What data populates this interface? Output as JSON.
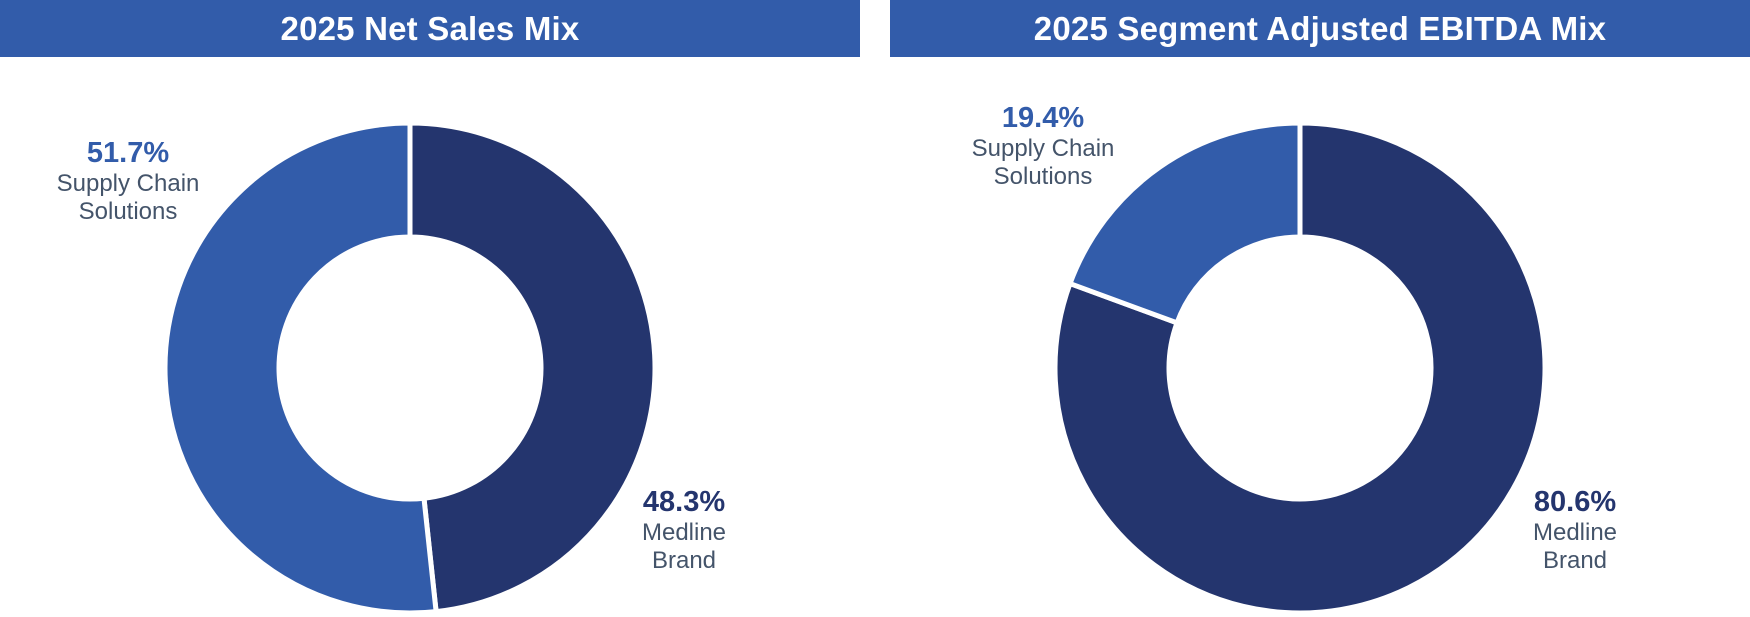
{
  "colors": {
    "header": "#325caa",
    "medline_brand": "#24356e",
    "supply_chain": "#325caa",
    "label_text": "#44546a"
  },
  "chart_data": [
    {
      "type": "pie",
      "donut": true,
      "title": "2025 Net Sales Mix",
      "slices": [
        {
          "name": "Medline\nBrand",
          "value": 48.3,
          "label": "48.3%",
          "color": "#24356e"
        },
        {
          "name": "Supply Chain\nSolutions",
          "value": 51.7,
          "label": "51.7%",
          "color": "#325caa"
        }
      ]
    },
    {
      "type": "pie",
      "donut": true,
      "title": "2025 Segment Adjusted EBITDA Mix",
      "slices": [
        {
          "name": "Medline\nBrand",
          "value": 80.6,
          "label": "80.6%",
          "color": "#24356e"
        },
        {
          "name": "Supply Chain\nSolutions",
          "value": 19.4,
          "label": "19.4%",
          "color": "#325caa"
        }
      ]
    }
  ]
}
